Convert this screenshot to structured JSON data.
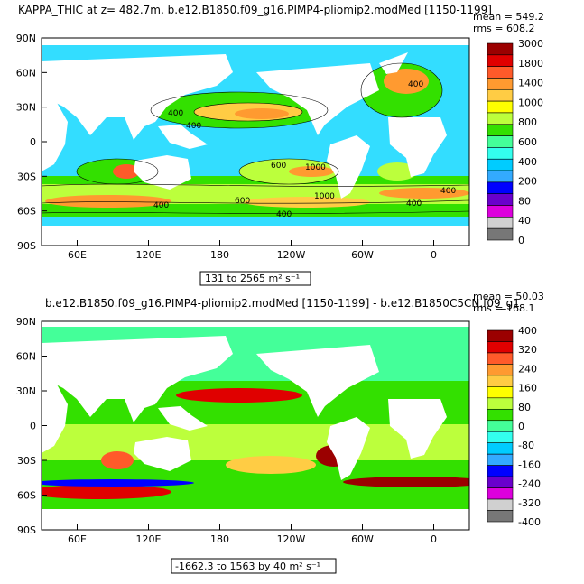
{
  "chart_data": [
    {
      "type": "heatmap",
      "title": "KAPPA_THIC at z= 482.7m, b.e12.B1850.f09_g16.PIMP4-pliomip2.modMed [1150-1199]",
      "stats": {
        "mean": "mean = 549.2",
        "rms": "rms = 608.2"
      },
      "xticks": [
        "60E",
        "120E",
        "180",
        "120W",
        "60W",
        "0"
      ],
      "yticks": [
        "90N",
        "60N",
        "30N",
        "0",
        "30S",
        "60S",
        "90S"
      ],
      "colorbar": {
        "labels": [
          "3000",
          "1800",
          "1400",
          "1000",
          "800",
          "600",
          "400",
          "200",
          "80",
          "40",
          "0"
        ],
        "colors": [
          "#9b0000",
          "#e00000",
          "#ff5a2a",
          "#ff9a30",
          "#ffcc44",
          "#ffff00",
          "#bcff3c",
          "#33e000",
          "#44ff99",
          "#33ffee",
          "#00ccff",
          "#33aaff",
          "#0000ff",
          "#6a00cc",
          "#dd00dd",
          "#d0d0d0",
          "#777777"
        ]
      },
      "range_label": "131 to 2565 m² s⁻¹",
      "contour_labels": [
        "400",
        "400",
        "600",
        "1000",
        "400",
        "400",
        "600",
        "1000",
        "400",
        "400",
        "400"
      ]
    },
    {
      "type": "heatmap",
      "title": "b.e12.B1850.f09_g16.PIMP4-pliomip2.modMed [1150-1199] - b.e12.B1850C5CN.f09_g1",
      "stats": {
        "mean": "mean = 50.03",
        "rms": "rms = 168.1"
      },
      "xticks": [
        "60E",
        "120E",
        "180",
        "120W",
        "60W",
        "0"
      ],
      "yticks": [
        "90N",
        "60N",
        "30N",
        "0",
        "30S",
        "60S",
        "90S"
      ],
      "colorbar": {
        "labels": [
          "400",
          "320",
          "240",
          "160",
          "80",
          "0",
          "-80",
          "-160",
          "-240",
          "-320",
          "-400"
        ],
        "colors": [
          "#9b0000",
          "#e00000",
          "#ff5a2a",
          "#ff9a30",
          "#ffcc44",
          "#ffff00",
          "#bcff3c",
          "#33e000",
          "#44ff99",
          "#33ffee",
          "#00ccff",
          "#33aaff",
          "#0000ff",
          "#6a00cc",
          "#dd00dd",
          "#d0d0d0",
          "#777777"
        ]
      },
      "range_label": "-1662.3 to 1563 by 40 m² s⁻¹"
    }
  ]
}
